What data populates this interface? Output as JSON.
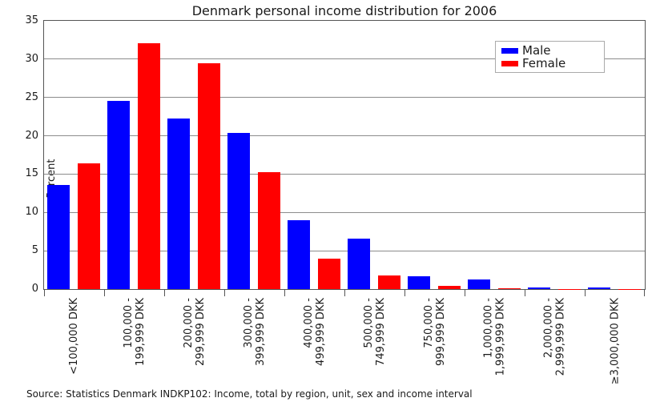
{
  "title": "Denmark personal income distribution for 2006",
  "y_axis_label": "Percent",
  "source_note": "Source: Statistics Denmark INDKP102: Income, total by region, unit, sex and income interval",
  "legend": {
    "items": [
      {
        "label": "Male",
        "color": "#0000ff"
      },
      {
        "label": "Female",
        "color": "#ff0000"
      }
    ]
  },
  "chart_data": {
    "type": "bar",
    "title": "Denmark personal income distribution for 2006",
    "xlabel": "",
    "ylabel": "Percent",
    "ylim": [
      0,
      35
    ],
    "yticks": [
      0,
      5,
      10,
      15,
      20,
      25,
      30,
      35
    ],
    "grid": true,
    "legend_position": "upper right",
    "categories": [
      "<100,000 DKK",
      "100,000 - 199,999 DKK",
      "200,000 - 299,999 DKK",
      "300,000 - 399,999 DKK",
      "400,000 - 499,999 DKK",
      "500,000 - 749,999 DKK",
      "750,000 - 999,999 DKK",
      "1,000,000 - 1,999,999 DKK",
      "2,000,000 - 2,999,999 DKK",
      "≥3,000,000 DKK"
    ],
    "category_lines": [
      [
        "<100,000 DKK"
      ],
      [
        "100,000 -",
        "199,999 DKK"
      ],
      [
        "200,000 -",
        "299,999 DKK"
      ],
      [
        "300,000 -",
        "399,999 DKK"
      ],
      [
        "400,000 -",
        "499,999 DKK"
      ],
      [
        "500,000 -",
        "749,999 DKK"
      ],
      [
        "750,000 -",
        "999,999 DKK"
      ],
      [
        "1,000,000 -",
        "1,999,999 DKK"
      ],
      [
        "2,000,000 -",
        "2,999,999 DKK"
      ],
      [
        "≥3,000,000 DKK"
      ]
    ],
    "series": [
      {
        "name": "Male",
        "color": "#0000ff",
        "values": [
          13.6,
          24.6,
          22.3,
          20.4,
          9.0,
          6.6,
          1.7,
          1.3,
          0.2,
          0.2
        ]
      },
      {
        "name": "Female",
        "color": "#ff0000",
        "values": [
          16.4,
          32.1,
          29.5,
          15.3,
          4.0,
          1.8,
          0.4,
          0.1,
          0.05,
          0.05
        ]
      }
    ]
  }
}
